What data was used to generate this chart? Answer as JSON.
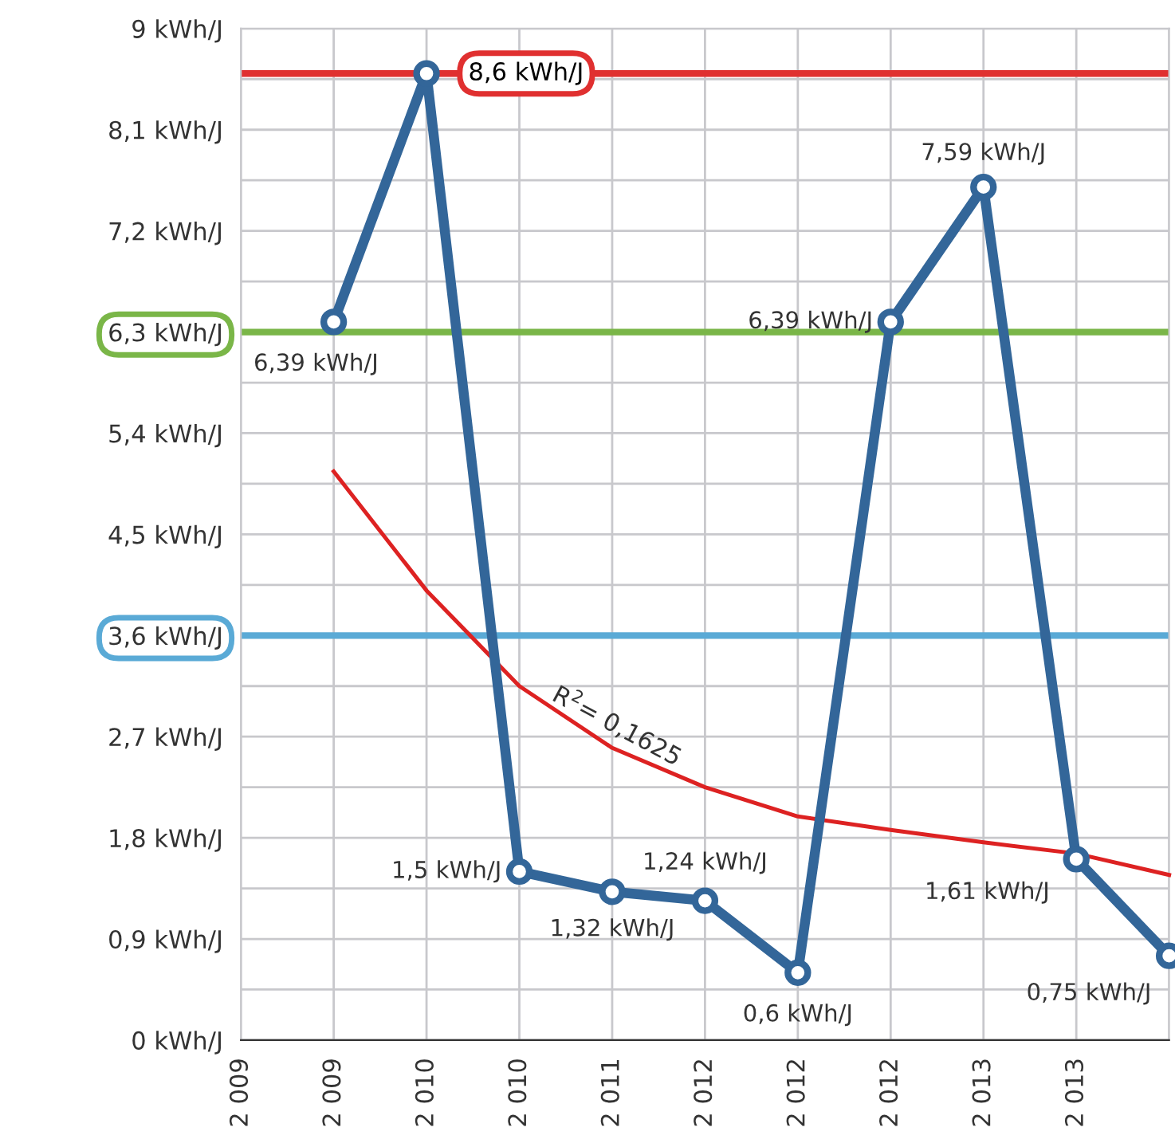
{
  "chart_data": {
    "type": "line",
    "categories": [
      "2 009",
      "2 009",
      "2 010",
      "2 010",
      "2 011",
      "2 012",
      "2 012",
      "2 012",
      "2 013",
      "2 013",
      null
    ],
    "ylim": [
      0,
      9
    ],
    "yticks": [
      {
        "value": 0,
        "label": "0 kWh/J"
      },
      {
        "value": 0.45,
        "label": null
      },
      {
        "value": 0.9,
        "label": "0,9 kWh/J"
      },
      {
        "value": 1.35,
        "label": null
      },
      {
        "value": 1.8,
        "label": "1,8 kWh/J"
      },
      {
        "value": 2.25,
        "label": null
      },
      {
        "value": 2.7,
        "label": "2,7 kWh/J"
      },
      {
        "value": 3.15,
        "label": null
      },
      {
        "value": 3.6,
        "label": "3,6 kWh/J"
      },
      {
        "value": 4.05,
        "label": null
      },
      {
        "value": 4.5,
        "label": "4,5 kWh/J"
      },
      {
        "value": 4.95,
        "label": null
      },
      {
        "value": 5.4,
        "label": "5,4 kWh/J"
      },
      {
        "value": 5.85,
        "label": null
      },
      {
        "value": 6.3,
        "label": "6,3 kWh/J"
      },
      {
        "value": 6.75,
        "label": null
      },
      {
        "value": 7.2,
        "label": "7,2 kWh/J"
      },
      {
        "value": 7.65,
        "label": null
      },
      {
        "value": 8.1,
        "label": "8,1 kWh/J"
      },
      {
        "value": 8.55,
        "label": null
      },
      {
        "value": 9,
        "label": "9 kWh/J"
      }
    ],
    "grid": true,
    "marker": "circle",
    "series": [
      {
        "color": "#336699",
        "values": [
          null,
          6.39,
          8.6,
          1.5,
          1.32,
          1.24,
          0.6,
          6.39,
          7.59,
          1.61,
          0.75
        ],
        "value_labels": [
          null,
          "6,39 kWh/J",
          null,
          "1,5 kWh/J",
          "1,32 kWh/J",
          "1,24 kWh/J",
          "0,6 kWh/J",
          "6,39 kWh/J",
          "7,59 kWh/J",
          "1,61 kWh/J",
          "0,75 kWh/J"
        ]
      },
      {
        "type": "line",
        "marker": "none",
        "color": "#dd2222",
        "values": [
          null,
          5.06,
          4.0,
          3.15,
          2.6,
          2.25,
          1.99,
          1.87,
          1.76,
          1.66,
          1.47
        ]
      }
    ],
    "ref_lines": [
      {
        "axis": "y",
        "value": 8.6,
        "label": "8,6 kWh/J",
        "color": "#e03030"
      },
      {
        "axis": "y",
        "value": 6.3,
        "color": "#7ab648"
      },
      {
        "axis": "y",
        "value": 3.6,
        "color": "#5aaad6"
      }
    ],
    "annotations": [
      "R$^{2}$= 0,1625"
    ]
  }
}
